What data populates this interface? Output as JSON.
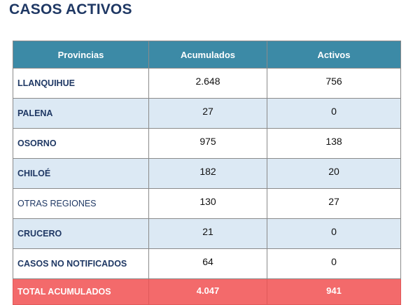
{
  "title": "CASOS ACTIVOS",
  "table": {
    "headers": [
      "Provincias",
      "Acumulados",
      "Activos"
    ],
    "rows": [
      {
        "provincia": "LLANQUIHUE",
        "acumulados": "2.648",
        "activos": "756"
      },
      {
        "provincia": "PALENA",
        "acumulados": "27",
        "activos": "0"
      },
      {
        "provincia": "OSORNO",
        "acumulados": "975",
        "activos": "138"
      },
      {
        "provincia": "CHILOÉ",
        "acumulados": "182",
        "activos": "20"
      },
      {
        "provincia": "OTRAS REGIONES",
        "acumulados": "130",
        "activos": "27"
      },
      {
        "provincia": "CRUCERO",
        "acumulados": "21",
        "activos": "0"
      },
      {
        "provincia": "CASOS NO NOTIFICADOS",
        "acumulados": "64",
        "activos": "0"
      }
    ],
    "total": {
      "label": "TOTAL ACUMULADOS",
      "acumulados": "4.047",
      "activos": "941"
    }
  },
  "colors": {
    "title": "#1f3864",
    "header_bg": "#3c8aa6",
    "row_alt_bg": "#dce9f4",
    "total_bg": "#f36a6b"
  }
}
